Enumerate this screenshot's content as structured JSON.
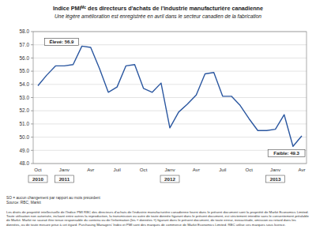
{
  "chart_data": {
    "type": "line",
    "title": "Indice PMIᴹᶜ des directeurs d'achats de l'industrie manufacturière canadienne",
    "subtitle": "Une légère amélioration est enregistrée en avril dans le secteur canadien de la fabrication",
    "categories": [
      "Oct",
      null,
      null,
      "Janv",
      null,
      null,
      "Avr",
      null,
      null,
      "Juil",
      null,
      null,
      "Oct",
      null,
      null,
      "Janv",
      null,
      null,
      "Avr",
      null,
      null,
      "Juil",
      null,
      null,
      "Oct",
      null,
      null,
      "Janv",
      null,
      null,
      "Avr"
    ],
    "year_labels": [
      "2010",
      null,
      null,
      "2011",
      null,
      null,
      null,
      null,
      null,
      null,
      null,
      null,
      null,
      null,
      null,
      "2012",
      null,
      null,
      null,
      null,
      null,
      null,
      null,
      null,
      null,
      null,
      null,
      "2013",
      null,
      null,
      null
    ],
    "values": [
      53.9,
      54.7,
      55.4,
      55.4,
      55.5,
      56.9,
      56.8,
      55.2,
      53.4,
      53.8,
      55.4,
      55.5,
      53.7,
      53.4,
      54.1,
      50.7,
      51.9,
      52.5,
      53.2,
      54.8,
      54.9,
      53.1,
      53.1,
      52.4,
      51.4,
      50.5,
      50.5,
      50.6,
      51.7,
      49.3,
      50.1
    ],
    "color": "#2b57a0",
    "ylim": [
      48,
      58
    ],
    "yticks": [
      {
        "value": 48,
        "label": "48.0"
      },
      {
        "value": 49,
        "label": "49.0"
      },
      {
        "value": 50,
        "label": "50.0"
      },
      {
        "value": 51,
        "label": "51.0"
      },
      {
        "value": 52,
        "label": "52.0"
      },
      {
        "value": 53,
        "label": "53.0"
      },
      {
        "value": 54,
        "label": "54.0"
      },
      {
        "value": 55,
        "label": "55.0"
      },
      {
        "value": 56,
        "label": "56.0"
      },
      {
        "value": 57,
        "label": "57.0"
      },
      {
        "value": 58,
        "label": "58.0"
      }
    ],
    "grid": true,
    "annotations": [
      {
        "label": "Élevé: 56.9",
        "value": 56.9
      },
      {
        "label": "Faible: 49.3",
        "value": 49.3
      }
    ],
    "notes": [
      "SO = aucun changement par rapport au mois précédent",
      "Source: RBC, Markit"
    ],
    "disclaimer": "Les droits de propriété intellectuelle de l'Indice PMI RBC des directeurs d'achats de l'industrie manufacturière canadienne fourni dans le présent document sont la propriété de Markit Economics Limited. Toute utilisation non autorisée, incluant entre autres la reproduction, la transmission ou autre de toute donnée figurant dans le présent document, est strictement interdite sans le consentement préalable de Markit. Markit ne saurait être tenue responsable du contenu ou de l'information (les « données ») figurant dans le présent document, de toute erreur, inexactitude, omission ou retard dans les données, ou de toute mesure prise à cet égard. Purchasing Managers' Index et PMI sont des marques de commerce de Markit Economics Limited. RBC utilise ces marques sous licence."
  }
}
